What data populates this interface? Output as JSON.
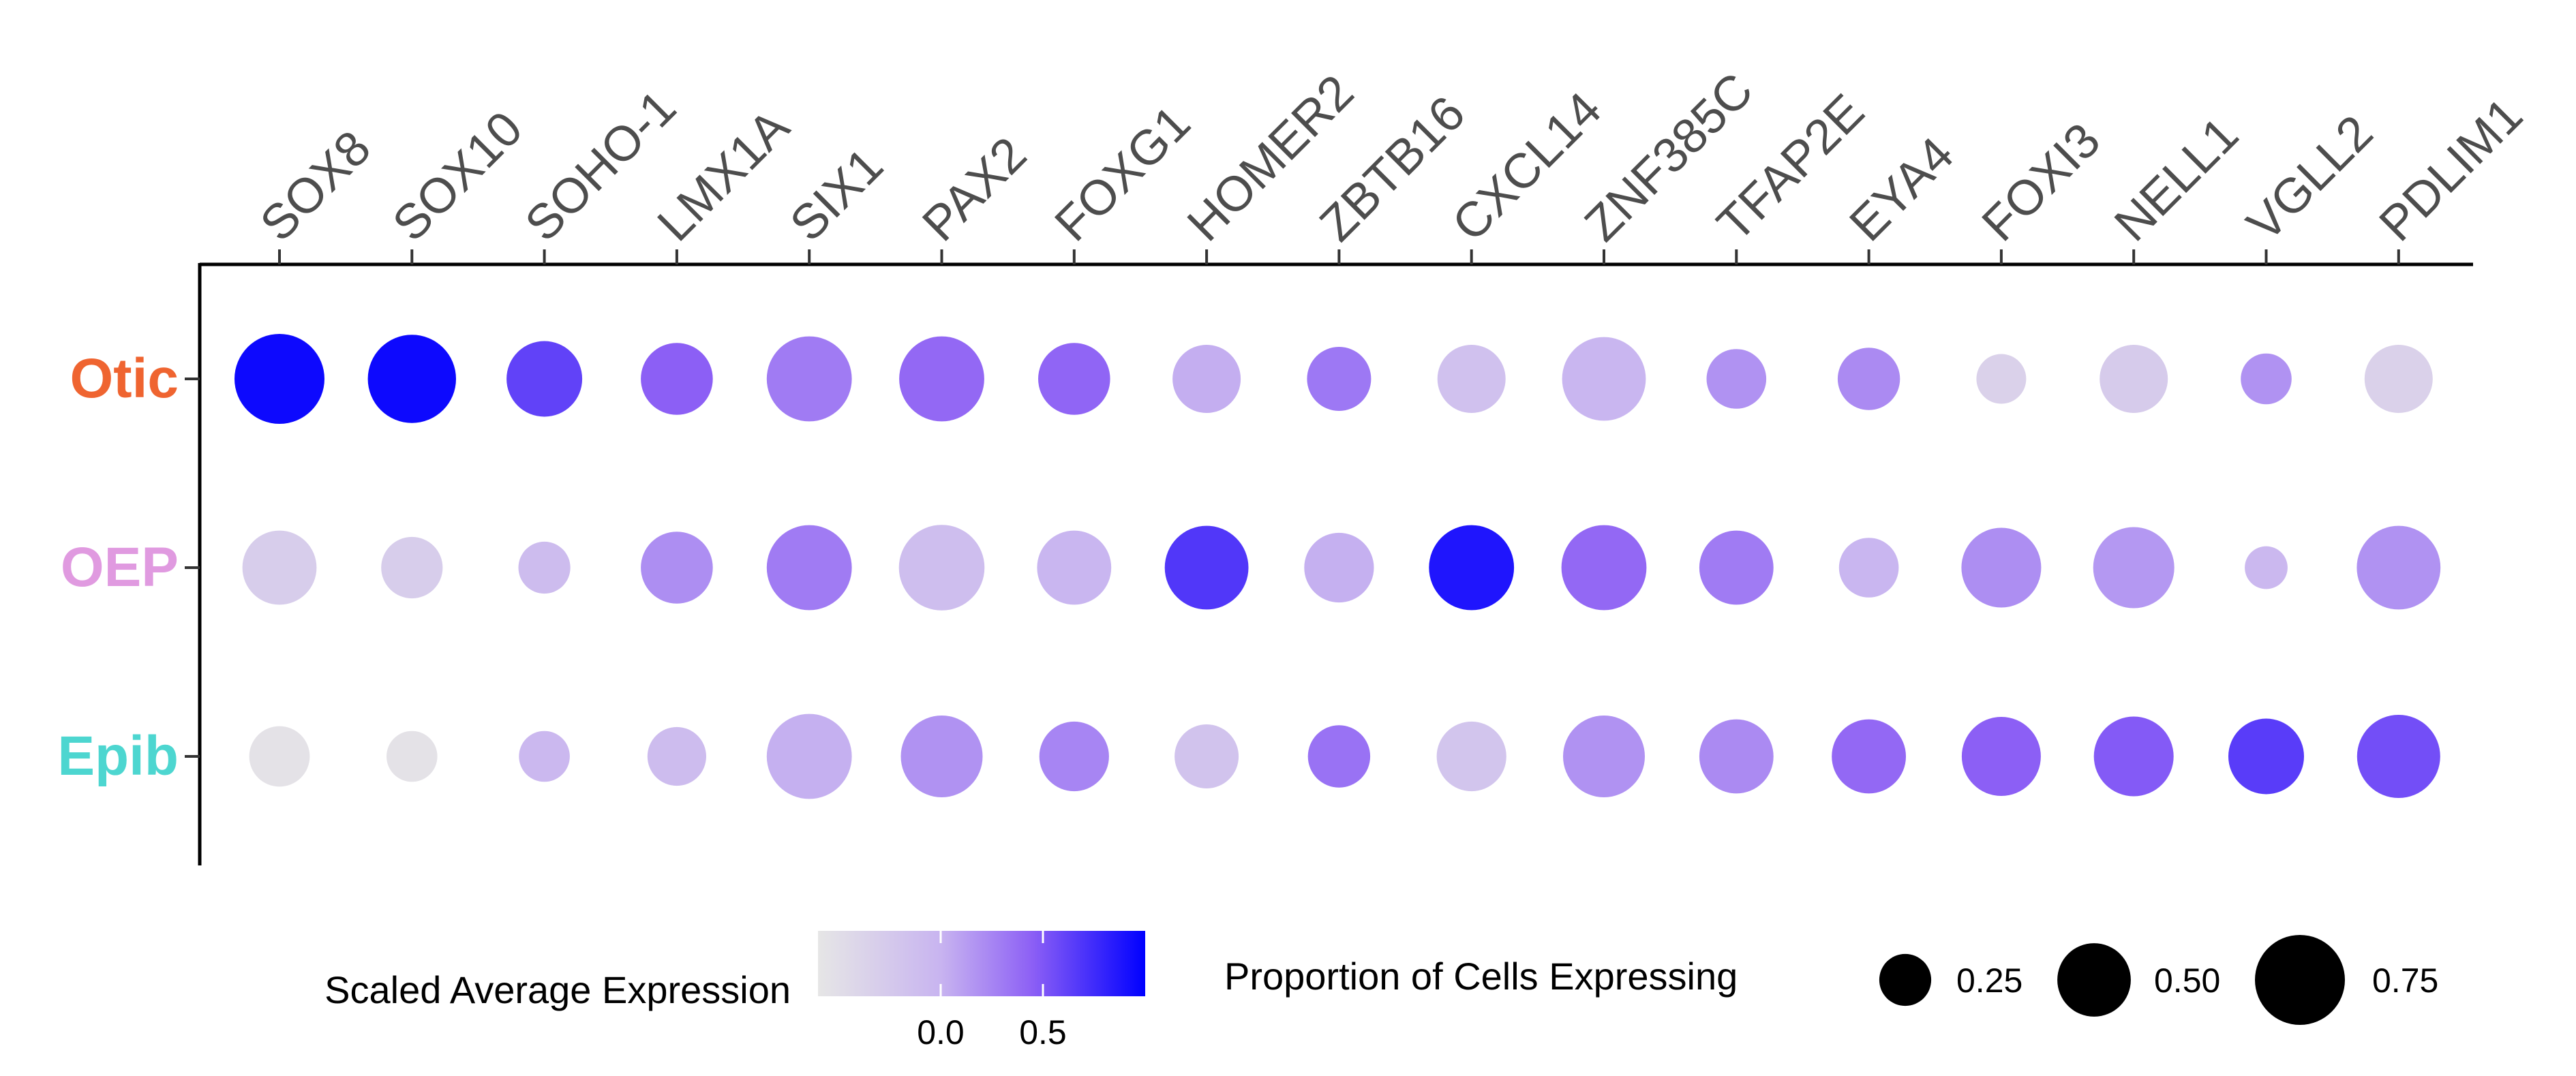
{
  "chart_data": {
    "type": "dotplot",
    "genes": [
      "SOX8",
      "SOX10",
      "SOHO-1",
      "LMX1A",
      "SIX1",
      "PAX2",
      "FOXG1",
      "HOMER2",
      "ZBTB16",
      "CXCL14",
      "ZNF385C",
      "TFAP2E",
      "EYA4",
      "FOXI3",
      "NELL1",
      "VGLL2",
      "PDLIM1"
    ],
    "groups": [
      {
        "name": "Otic",
        "color": "#ef6430"
      },
      {
        "name": "OEP",
        "color": "#e09ae0"
      },
      {
        "name": "Epib",
        "color": "#4dd6d0"
      }
    ],
    "points": {
      "Otic": {
        "expression": [
          0.95,
          0.95,
          0.62,
          0.45,
          0.3,
          0.4,
          0.42,
          0.03,
          0.32,
          -0.15,
          -0.02,
          0.18,
          0.22,
          -0.35,
          -0.28,
          0.18,
          -0.35
        ],
        "proportion": [
          0.75,
          0.72,
          0.53,
          0.48,
          0.67,
          0.67,
          0.48,
          0.43,
          0.38,
          0.43,
          0.65,
          0.33,
          0.36,
          0.23,
          0.43,
          0.24,
          0.43
        ]
      },
      "OEP": {
        "expression": [
          -0.3,
          -0.3,
          -0.1,
          0.2,
          0.3,
          -0.12,
          -0.02,
          0.68,
          0.02,
          0.88,
          0.4,
          0.3,
          -0.02,
          0.2,
          0.15,
          -0.05,
          0.18
        ],
        "proportion": [
          0.51,
          0.35,
          0.25,
          0.48,
          0.67,
          0.68,
          0.51,
          0.65,
          0.45,
          0.67,
          0.67,
          0.51,
          0.33,
          0.59,
          0.61,
          0.17,
          0.65
        ]
      },
      "Epib": {
        "expression": [
          -0.55,
          -0.55,
          -0.05,
          -0.1,
          0.02,
          0.18,
          0.25,
          -0.18,
          0.35,
          -0.2,
          0.18,
          0.22,
          0.4,
          0.45,
          0.48,
          0.65,
          0.55
        ],
        "proportion": [
          0.34,
          0.24,
          0.24,
          0.32,
          0.67,
          0.62,
          0.45,
          0.38,
          0.36,
          0.45,
          0.62,
          0.51,
          0.51,
          0.58,
          0.59,
          0.53,
          0.64
        ]
      }
    },
    "color_scale": {
      "title": "Scaled Average Expression",
      "min": -0.6,
      "max": 1.0,
      "low_color": "#e6e6e6",
      "high_color": "#0000ff",
      "ticks": [
        0.0,
        0.5
      ],
      "tick_labels": [
        "0.0",
        "0.5"
      ]
    },
    "size_scale": {
      "title": "Proportion of Cells Expressing",
      "ticks": [
        0.25,
        0.5,
        0.75
      ],
      "tick_labels": [
        "0.25",
        "0.50",
        "0.75"
      ]
    }
  }
}
